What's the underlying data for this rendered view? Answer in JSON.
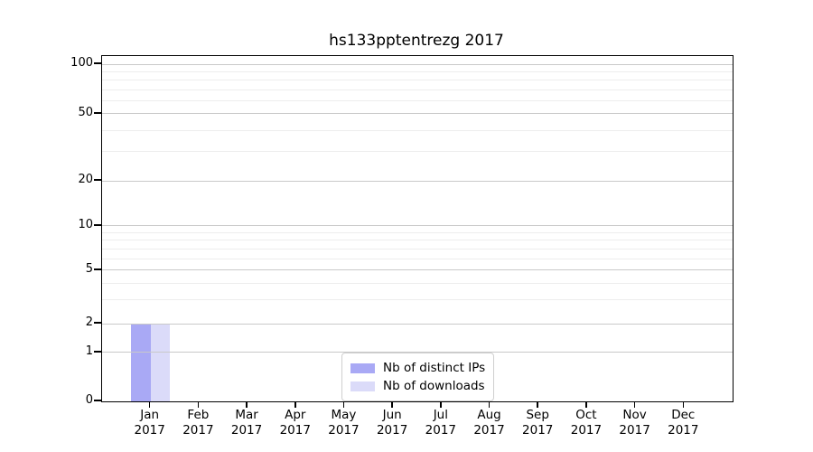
{
  "figure": {
    "background": "#ffffff",
    "axis_color": "#000000"
  },
  "chart_data": {
    "type": "bar",
    "title": "hs133pptentrezg 2017",
    "categories": [
      "Jan",
      "Feb",
      "Mar",
      "Apr",
      "May",
      "Jun",
      "Jul",
      "Aug",
      "Sep",
      "Oct",
      "Nov",
      "Dec"
    ],
    "x_year_label": "2017",
    "series": [
      {
        "name": "Nb of distinct IPs",
        "color": "#a9a9f5",
        "values": [
          2,
          0,
          0,
          0,
          0,
          0,
          0,
          0,
          0,
          0,
          0,
          0
        ]
      },
      {
        "name": "Nb of downloads",
        "color": "#dbdbf9",
        "values": [
          2,
          0,
          0,
          0,
          0,
          0,
          0,
          0,
          0,
          0,
          0,
          0
        ]
      }
    ],
    "y_axis": {
      "ticks": [
        0,
        1,
        2,
        5,
        10,
        20,
        50,
        100
      ],
      "minor_ticks": [
        3,
        4,
        6,
        7,
        8,
        9,
        30,
        40,
        60,
        70,
        80,
        90
      ],
      "scale": "log-like",
      "range": [
        0,
        110
      ]
    },
    "legend": {
      "position": "lower center",
      "entries": [
        "Nb of distinct IPs",
        "Nb of downloads"
      ]
    },
    "grid": {
      "major_color": "#c9c9c9",
      "minor_color": "#ededed"
    }
  }
}
